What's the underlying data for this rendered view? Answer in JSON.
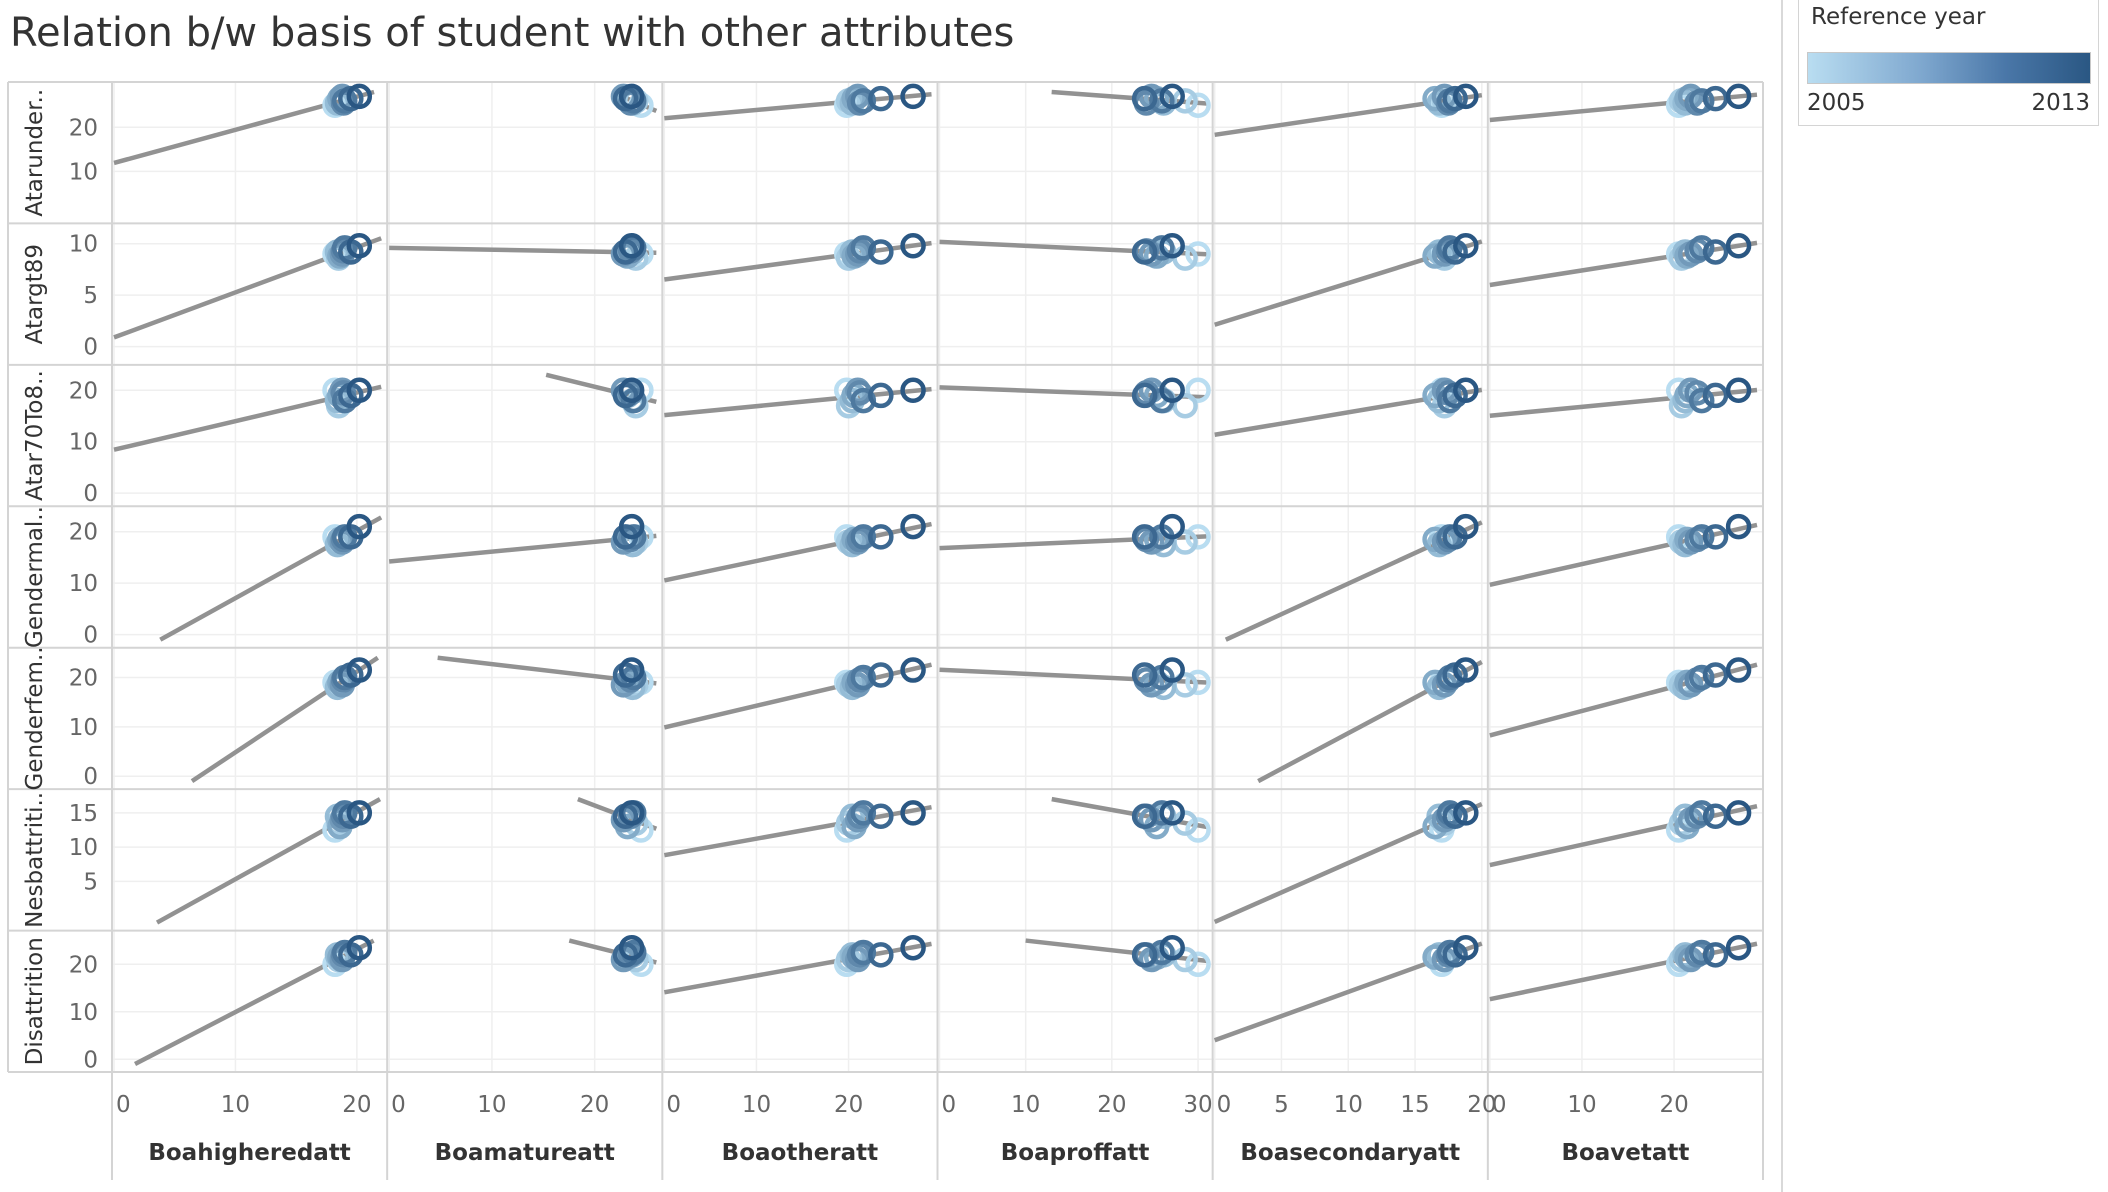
{
  "title": "Relation b/w basis of student with other attributes",
  "legend": {
    "title": "Reference year",
    "min_label": "2005",
    "max_label": "2013",
    "colors": [
      "#b9ddf1",
      "#2a5783"
    ]
  },
  "chart_data": {
    "type": "scatter",
    "title": "Relation b/w basis of student with other attributes",
    "trend_lines": true,
    "grid": true,
    "color_encoding": "Reference year",
    "years": [
      2005,
      2006,
      2007,
      2008,
      2009,
      2010,
      2011,
      2012,
      2013
    ],
    "columns": [
      {
        "label": "Boahigheredatt",
        "xlim": [
          0,
          22
        ],
        "ticks": [
          0,
          10,
          20
        ],
        "x": [
          18.2,
          18.5,
          18.4,
          18.6,
          18.8,
          18.9,
          19.0,
          19.5,
          20.2
        ]
      },
      {
        "label": "Boamatureatt",
        "xlim": [
          0,
          26
        ],
        "ticks": [
          0,
          10,
          20
        ],
        "x": [
          24.5,
          24.0,
          23.7,
          23.2,
          22.8,
          23.5,
          23.8,
          23.0,
          23.6
        ]
      },
      {
        "label": "Boaotheratt",
        "xlim": [
          0,
          29
        ],
        "ticks": [
          0,
          10,
          20
        ],
        "x": [
          19.8,
          20.0,
          20.4,
          20.6,
          21.0,
          21.2,
          21.6,
          23.5,
          27.0
        ]
      },
      {
        "label": "Boaproffatt",
        "xlim": [
          0,
          31
        ],
        "ticks": [
          0,
          10,
          20,
          30
        ],
        "x": [
          30.0,
          28.5,
          26.0,
          25.2,
          24.6,
          24.0,
          25.8,
          23.8,
          27.0
        ]
      },
      {
        "label": "Boasecondaryatt",
        "xlim": [
          0,
          20
        ],
        "ticks": [
          0,
          5,
          10,
          15,
          20
        ],
        "x": [
          17.0,
          17.2,
          16.8,
          16.5,
          17.2,
          17.5,
          17.6,
          18.0,
          18.8
        ]
      },
      {
        "label": "Boavetatt",
        "xlim": [
          0,
          29
        ],
        "ticks": [
          0,
          10,
          20
        ],
        "x": [
          20.5,
          20.8,
          21.2,
          21.4,
          21.8,
          22.5,
          23.0,
          24.5,
          27.0
        ]
      }
    ],
    "rows": [
      {
        "label": "Atarunder..",
        "ylim": [
          0,
          28
        ],
        "ticks": [
          10,
          20
        ],
        "y": [
          25.0,
          26.0,
          25.5,
          26.5,
          27.0,
          25.5,
          26.0,
          26.5,
          27.0
        ]
      },
      {
        "label": "Atargt89",
        "ylim": [
          -1,
          11
        ],
        "ticks": [
          0,
          5,
          10
        ],
        "y": [
          9.0,
          8.6,
          9.2,
          8.8,
          9.0,
          9.3,
          9.6,
          9.2,
          9.8
        ]
      },
      {
        "label": "Atar70To8..",
        "ylim": [
          -1,
          23
        ],
        "ticks": [
          0,
          10,
          20
        ],
        "y": [
          20.0,
          17.0,
          18.0,
          19.0,
          20.0,
          19.5,
          18.0,
          19.0,
          20.0
        ]
      },
      {
        "label": "Gendermal..",
        "ylim": [
          -1,
          23
        ],
        "ticks": [
          0,
          10,
          20
        ],
        "y": [
          19.0,
          18.0,
          17.5,
          18.5,
          18.0,
          18.5,
          19.0,
          19.0,
          21.0
        ]
      },
      {
        "label": "Genderfem..",
        "ylim": [
          -1,
          24
        ],
        "ticks": [
          0,
          10,
          20
        ],
        "y": [
          19.0,
          18.5,
          18.0,
          19.0,
          18.5,
          19.5,
          20.0,
          20.5,
          21.5
        ]
      },
      {
        "label": "Nesbattriti..",
        "ylim": [
          -1,
          17
        ],
        "ticks": [
          5,
          10,
          15
        ],
        "y": [
          12.5,
          13.5,
          14.5,
          13.0,
          14.0,
          14.5,
          15.0,
          14.5,
          15.0
        ]
      },
      {
        "label": "Disattrition",
        "ylim": [
          -1,
          25
        ],
        "ticks": [
          0,
          10,
          20
        ],
        "y": [
          20.0,
          21.0,
          22.0,
          21.5,
          21.0,
          22.0,
          22.5,
          22.0,
          23.5
        ]
      }
    ]
  }
}
